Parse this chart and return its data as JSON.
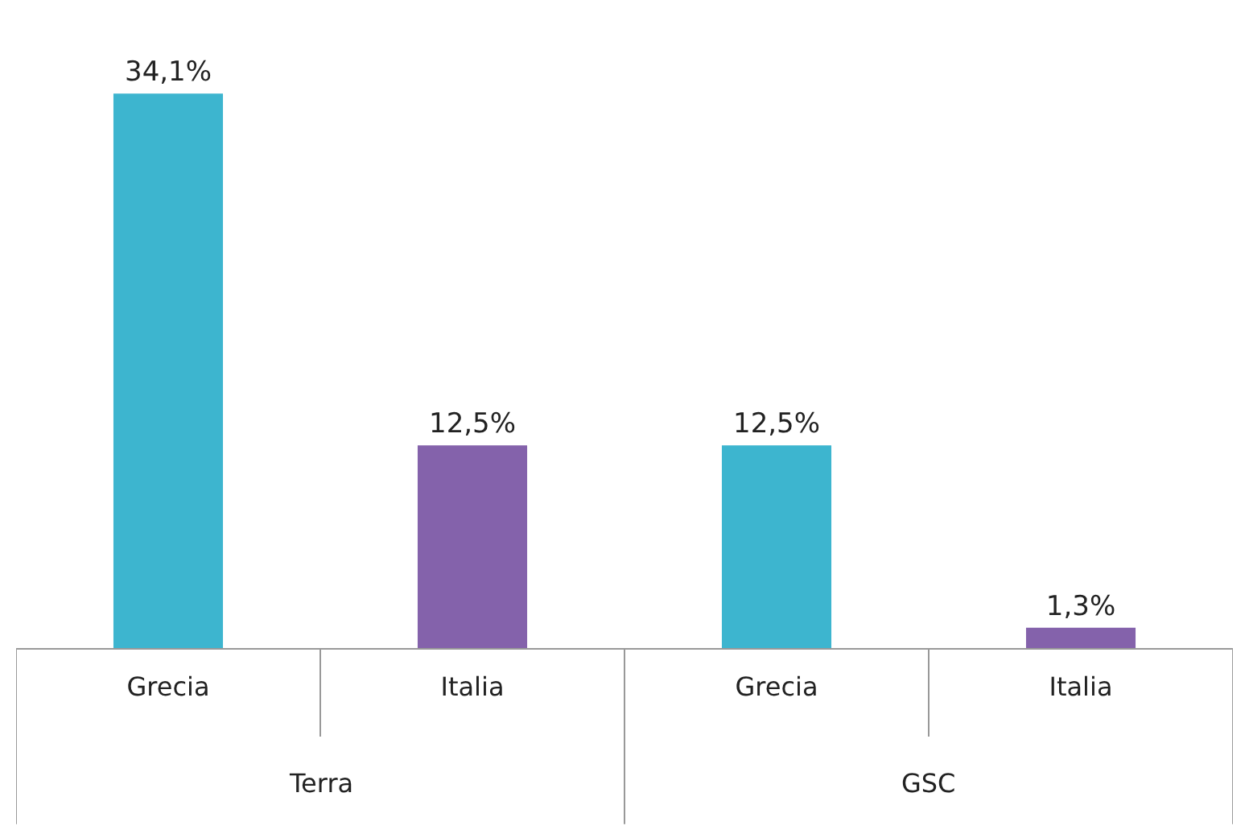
{
  "chart_data": {
    "type": "bar",
    "categories": [
      "Grecia",
      "Italia",
      "Grecia",
      "Italia"
    ],
    "values": [
      34.1,
      12.5,
      12.5,
      1.3
    ],
    "colors": [
      "#3db5cf",
      "#8462ab",
      "#3db5cf",
      "#8462ab"
    ],
    "value_labels": [
      "34,1%",
      "12,5%",
      "12,5%",
      "1,3%"
    ],
    "annotations": [
      "Terra",
      "GSC"
    ]
  }
}
